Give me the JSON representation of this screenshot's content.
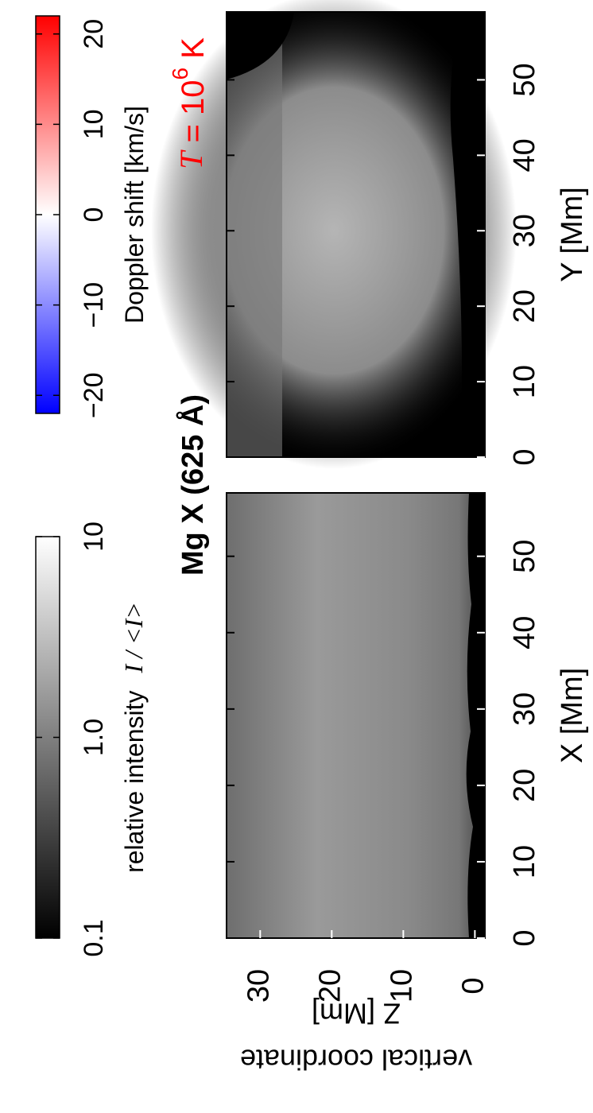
{
  "chart_data": [
    {
      "type": "colorbar",
      "label": "relative intensity",
      "label_math": "I / <I>",
      "scale": "log",
      "xlim": [
        0.1,
        10
      ],
      "xticks": [
        0.1,
        {
          "value": 1,
          "label": "1.0"
        },
        10
      ],
      "colors": [
        "#000000",
        "#ffffff"
      ]
    },
    {
      "type": "colorbar",
      "label": "Doppler shift  [km/s]",
      "scale": "linear",
      "xlim": [
        -22,
        22
      ],
      "xticks": [
        {
          "value": -20,
          "label": "−20"
        },
        {
          "value": -10,
          "label": "−10"
        },
        0,
        10,
        20
      ],
      "colors": [
        "#0000ff",
        "#ffffff",
        "#ff0000"
      ]
    },
    {
      "type": "image",
      "title": "Mg X (625 Å)",
      "xlabel": "X  [Mm]",
      "ylabel": [
        "vertical coordinate",
        "Z  [Mm]"
      ],
      "xlim": [
        0,
        58.3
      ],
      "xticks": [
        0,
        10,
        20,
        30,
        40,
        50
      ],
      "ylim": [
        -1.4,
        34.7
      ],
      "yticks": [
        0,
        10,
        20,
        30
      ]
    },
    {
      "type": "image",
      "xlabel": "Y  [Mm]",
      "xlim": [
        0,
        59
      ],
      "xticks": [
        0,
        10,
        20,
        30,
        40,
        50
      ],
      "annotation": {
        "symbol": "T",
        "equals": " = 10",
        "exponent": "6",
        "unit": " K",
        "color": "#ff0000"
      }
    }
  ]
}
